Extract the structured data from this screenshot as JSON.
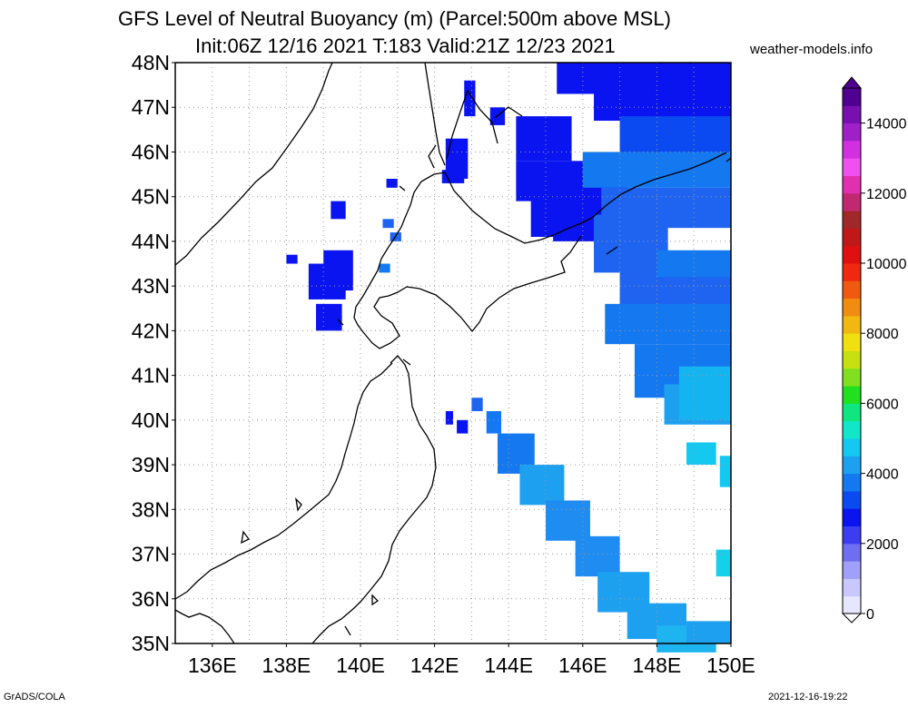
{
  "title_line1": "GFS Level of Neutral Buoyancy (m) (Parcel:500m above MSL)",
  "title_line2": "Init:06Z 12/16 2021 T:183 Valid:21Z 12/23 2021",
  "site": "weather-models.info",
  "credit": "GrADS/COLA",
  "timestamp": "2021-12-16-19:22",
  "map": {
    "lat_labels": [
      "48N",
      "47N",
      "46N",
      "45N",
      "44N",
      "43N",
      "42N",
      "41N",
      "40N",
      "39N",
      "38N",
      "37N",
      "36N",
      "35N"
    ],
    "lon_labels": [
      "136E",
      "138E",
      "140E",
      "142E",
      "144E",
      "146E",
      "148E",
      "150E"
    ],
    "lat_range": [
      35,
      48
    ],
    "lon_range": [
      135,
      150
    ],
    "grid_lines": "dotted"
  },
  "colorbar": {
    "labels": [
      "14000",
      "12000",
      "10000",
      "8000",
      "6000",
      "4000",
      "2000",
      "0"
    ],
    "range": [
      0,
      15000
    ],
    "colors": [
      "#e6e6ff",
      "#c8c8ff",
      "#a0a0f8",
      "#6e6ef0",
      "#3c3cf0",
      "#0a14f0",
      "#0a4af0",
      "#1478f0",
      "#1ea0f0",
      "#14c8f0",
      "#10e6c8",
      "#10e680",
      "#20e020",
      "#80e020",
      "#c8e010",
      "#f0e010",
      "#f0b810",
      "#f08c10",
      "#f05a10",
      "#f02810",
      "#e01010",
      "#c01818",
      "#a02828",
      "#c02870",
      "#e030b0",
      "#f050f0",
      "#d030e0",
      "#a020c8",
      "#7810b0",
      "#500090"
    ]
  },
  "regions": [
    {
      "name": "okhotsk-blue-zone",
      "level": "1000-2500"
    },
    {
      "name": "pacific-east-zone",
      "level": "1500-3500"
    },
    {
      "name": "pacific-diagonal-band",
      "level": "2500-3500"
    },
    {
      "name": "sea-of-japan-patch",
      "level": "500-1500"
    }
  ]
}
